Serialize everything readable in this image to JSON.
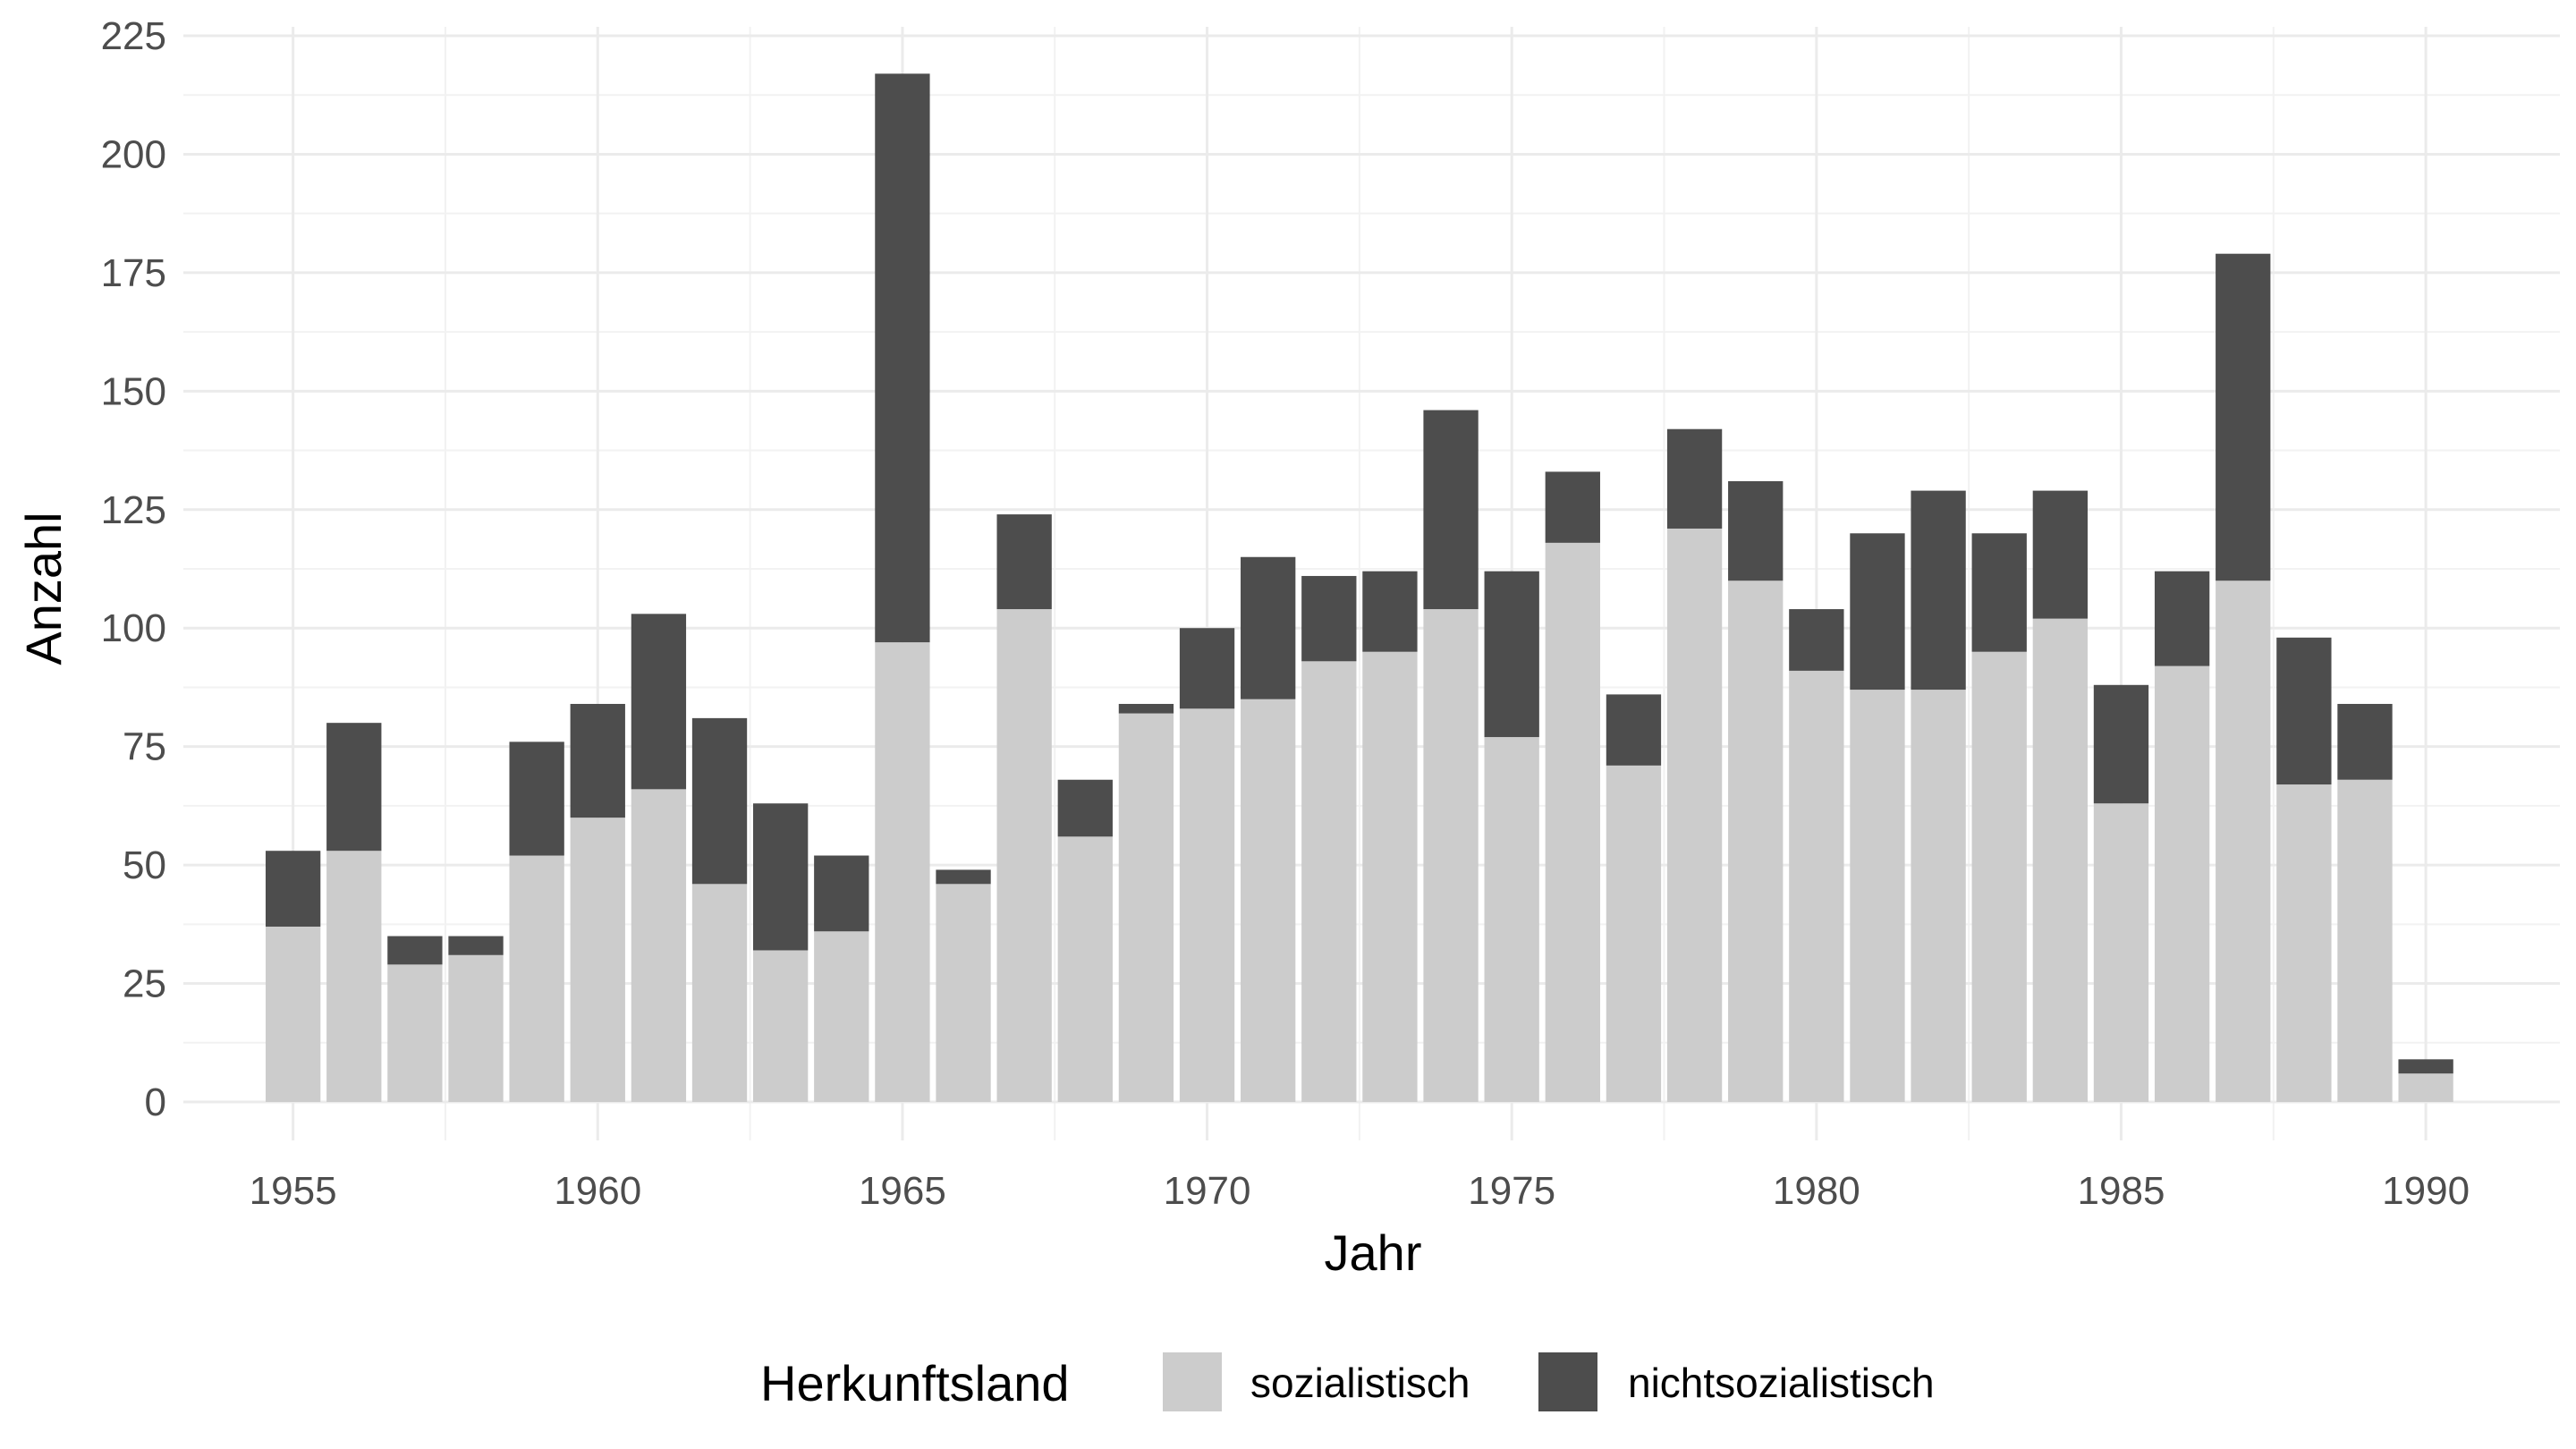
{
  "chart_data": {
    "type": "bar",
    "stacked": true,
    "xlabel": "Jahr",
    "ylabel": "Anzahl",
    "ylim": [
      0,
      225
    ],
    "yticks": [
      0,
      25,
      50,
      75,
      100,
      125,
      150,
      175,
      200,
      225
    ],
    "xticks": [
      1955,
      1960,
      1965,
      1970,
      1975,
      1980,
      1985,
      1990
    ],
    "xlim": [
      1953.2,
      1992.2
    ],
    "grid": true,
    "legend": {
      "title": "Herkunftsland",
      "position": "bottom"
    },
    "categories": [
      1955,
      1956,
      1957,
      1958,
      1959,
      1960,
      1961,
      1962,
      1963,
      1964,
      1965,
      1966,
      1967,
      1968,
      1969,
      1970,
      1971,
      1972,
      1973,
      1974,
      1975,
      1976,
      1977,
      1978,
      1979,
      1980,
      1981,
      1982,
      1983,
      1984,
      1985,
      1986,
      1987,
      1988,
      1989,
      1990
    ],
    "series": [
      {
        "name": "sozialistisch",
        "color": "#cccccc",
        "values": [
          37,
          53,
          29,
          31,
          52,
          60,
          66,
          46,
          32,
          36,
          97,
          46,
          104,
          56,
          82,
          83,
          85,
          93,
          95,
          104,
          77,
          118,
          71,
          121,
          110,
          91,
          87,
          87,
          95,
          102,
          63,
          92,
          110,
          67,
          68,
          6
        ]
      },
      {
        "name": "nichtsozialistisch",
        "color": "#4d4d4d",
        "values": [
          16,
          27,
          6,
          4,
          24,
          24,
          37,
          35,
          31,
          16,
          120,
          3,
          20,
          12,
          2,
          17,
          30,
          18,
          17,
          42,
          35,
          15,
          15,
          21,
          21,
          13,
          33,
          42,
          25,
          27,
          25,
          20,
          69,
          31,
          16,
          3
        ]
      }
    ]
  }
}
